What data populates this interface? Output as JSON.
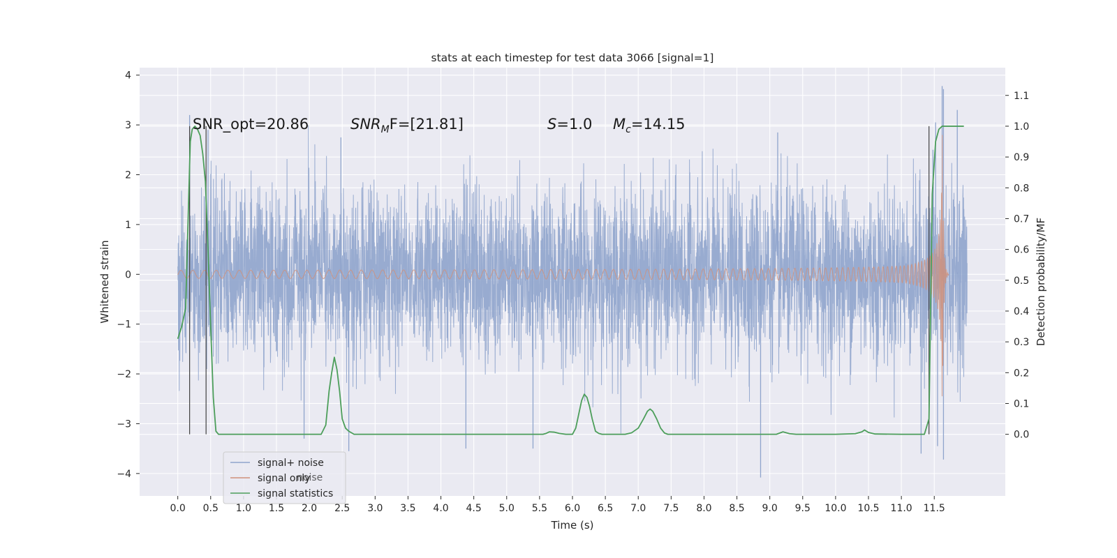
{
  "chart_data": {
    "type": "line",
    "title": "stats at each timestep for test data 3066 [signal=1]",
    "xlabel": "Time (s)",
    "ylabel": "Whitened strain",
    "ylabel_right": "Detection probability/MF",
    "xlim": [
      -0.58,
      12.58
    ],
    "ylim": [
      -4.45,
      4.15
    ],
    "ylim_right": [
      -0.2,
      1.19
    ],
    "x_ticks": [
      "0.0",
      "0.5",
      "1.0",
      "1.5",
      "2.0",
      "2.5",
      "3.0",
      "3.5",
      "4.0",
      "4.5",
      "5.0",
      "5.5",
      "6.0",
      "6.5",
      "7.0",
      "7.5",
      "8.0",
      "8.5",
      "9.0",
      "9.5",
      "10.0",
      "10.5",
      "11.0",
      "11.5"
    ],
    "y_ticks_left": [
      "−4",
      "−3",
      "−2",
      "−1",
      "0",
      "1",
      "2",
      "3",
      "4"
    ],
    "y_ticks_right": [
      "0.0",
      "0.1",
      "0.2",
      "0.3",
      "0.4",
      "0.5",
      "0.6",
      "0.7",
      "0.8",
      "0.9",
      "1.0",
      "1.1"
    ],
    "grid": true,
    "legend_position": "lower-left",
    "legend_ghost_text": "noise",
    "annotations": {
      "snr_opt": "SNR_opt=20.86",
      "snr_mf_base": "SNR",
      "snr_mf_sub": "M",
      "snr_mf_rest": "F=[21.81]",
      "s_var": "S",
      "s_val": "=1.0",
      "mc_var": "M",
      "mc_sub": "c",
      "mc_val": "=14.15"
    },
    "vertical_markers_x": [
      0.18,
      0.43,
      11.42
    ],
    "series": [
      {
        "name": "signal+ noise",
        "color": "#8fa4cc",
        "kind": "noise",
        "x_range": [
          0.0,
          12.0
        ],
        "typical_envelope": [
          -1.3,
          1.3
        ],
        "max": 3.78,
        "min": -4.08
      },
      {
        "name": "signal only",
        "color": "#d0907a",
        "kind": "chirp",
        "x_range": [
          0.0,
          11.72
        ],
        "merger_time": 11.62,
        "peak_amplitude": 3.5
      },
      {
        "name": "signal statistics",
        "color": "#4c9e5a",
        "kind": "probability",
        "x": [
          0.0,
          0.06,
          0.12,
          0.16,
          0.19,
          0.22,
          0.26,
          0.3,
          0.34,
          0.38,
          0.42,
          0.46,
          0.5,
          0.54,
          0.58,
          0.62,
          0.7,
          1.0,
          2.0,
          2.18,
          2.25,
          2.3,
          2.34,
          2.38,
          2.42,
          2.46,
          2.5,
          2.55,
          2.6,
          2.68,
          2.8,
          3.0,
          4.0,
          5.0,
          5.45,
          5.55,
          5.6,
          5.65,
          5.72,
          5.8,
          5.9,
          6.0,
          6.05,
          6.1,
          6.14,
          6.18,
          6.22,
          6.26,
          6.3,
          6.35,
          6.4,
          6.45,
          6.55,
          6.8,
          6.9,
          7.0,
          7.08,
          7.14,
          7.18,
          7.22,
          7.28,
          7.34,
          7.4,
          7.45,
          7.6,
          8.0,
          9.1,
          9.2,
          9.3,
          9.4,
          10.0,
          10.3,
          10.4,
          10.44,
          10.5,
          10.6,
          11.0,
          11.35,
          11.42,
          11.47,
          11.52,
          11.57,
          11.62,
          11.7,
          11.85,
          11.95
        ],
        "values": [
          0.31,
          0.35,
          0.41,
          0.72,
          0.95,
          0.99,
          1.0,
          0.99,
          0.97,
          0.91,
          0.82,
          0.6,
          0.35,
          0.12,
          0.01,
          0.0,
          0.0,
          0.0,
          0.0,
          0.0,
          0.03,
          0.14,
          0.2,
          0.25,
          0.21,
          0.14,
          0.05,
          0.02,
          0.01,
          0.0,
          0.0,
          0.0,
          0.0,
          0.0,
          0.0,
          0.0,
          0.003,
          0.008,
          0.007,
          0.003,
          0.0,
          0.0,
          0.02,
          0.07,
          0.11,
          0.13,
          0.12,
          0.09,
          0.05,
          0.01,
          0.003,
          0.0,
          0.0,
          0.0,
          0.005,
          0.02,
          0.05,
          0.075,
          0.082,
          0.075,
          0.05,
          0.02,
          0.004,
          0.0,
          0.0,
          0.0,
          0.0,
          0.008,
          0.002,
          0.0,
          0.0,
          0.002,
          0.008,
          0.014,
          0.006,
          0.001,
          0.0,
          0.0,
          0.05,
          0.78,
          0.95,
          0.99,
          1.0,
          1.0,
          1.0,
          1.0
        ]
      }
    ]
  }
}
